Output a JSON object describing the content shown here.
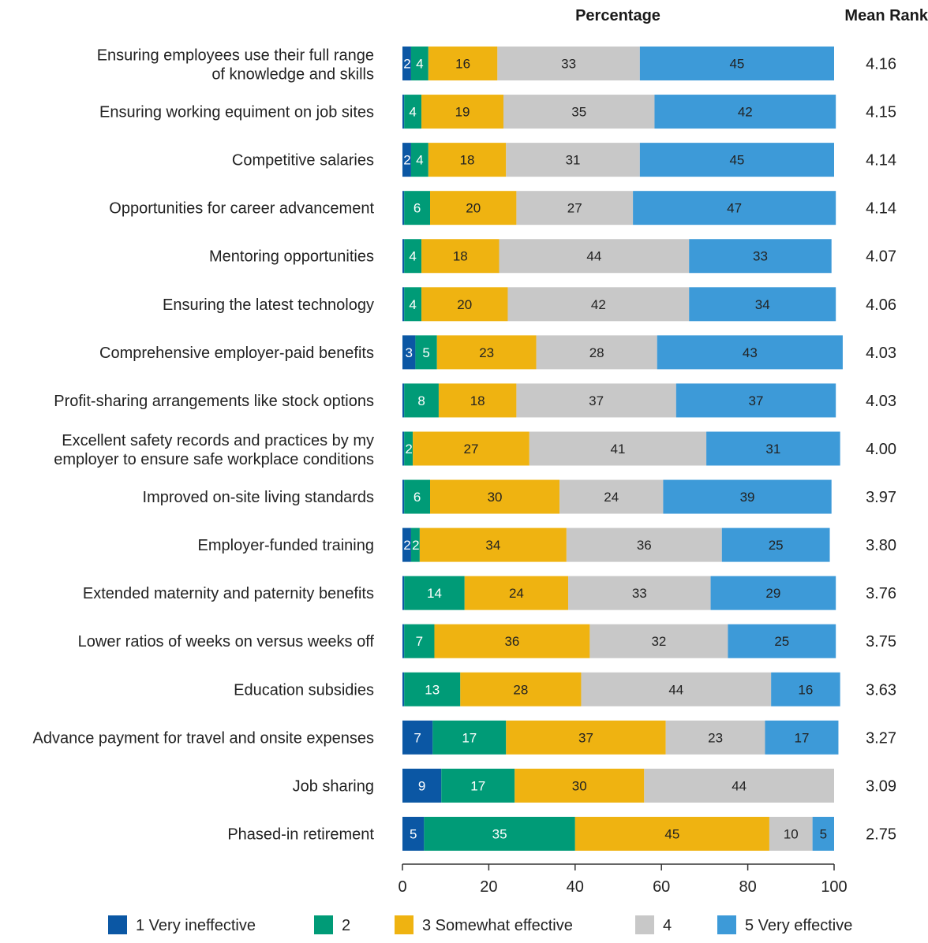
{
  "chart_data": {
    "type": "bar",
    "orientation": "horizontal",
    "stacked": true,
    "title": "",
    "xlabel": "Percentage",
    "value_column_header": "Mean Rank",
    "xlim": [
      0,
      100
    ],
    "xticks": [
      "0",
      "20",
      "40",
      "60",
      "80",
      "100"
    ],
    "grid": false,
    "legend_position": "bottom",
    "categories": [
      "Ensuring employees use their full range of knowledge and skills",
      "Ensuring working equiment on job sites",
      "Competitive salaries",
      "Opportunities for career advancement",
      "Mentoring opportunities",
      "Ensuring the latest technology",
      "Comprehensive employer-paid benefits",
      "Profit-sharing arrangements like stock options",
      "Excellent safety records and practices by my employer to ensure safe workplace conditions",
      "Improved on-site living standards",
      "Employer-funded training",
      "Extended maternity and paternity benefits",
      "Lower ratios of weeks on versus weeks off",
      "Education subsidies",
      "Advance payment for travel and onsite expenses",
      "Job sharing",
      "Phased-in retirement"
    ],
    "category_label_lines": [
      [
        "Ensuring employees use their full range",
        "of knowledge and skills"
      ],
      [
        "Ensuring working equiment on job sites"
      ],
      [
        "Competitive salaries"
      ],
      [
        "Opportunities for career advancement"
      ],
      [
        "Mentoring opportunities"
      ],
      [
        "Ensuring the latest technology"
      ],
      [
        "Comprehensive employer-paid benefits"
      ],
      [
        "Profit-sharing arrangements like stock options"
      ],
      [
        "Excellent safety records and practices by my",
        "employer to ensure safe workplace conditions"
      ],
      [
        "Improved on-site living standards"
      ],
      [
        "Employer-funded training"
      ],
      [
        "Extended maternity and paternity benefits"
      ],
      [
        "Lower ratios of weeks on versus weeks off"
      ],
      [
        "Education subsidies"
      ],
      [
        "Advance payment for travel and onsite expenses"
      ],
      [
        "Job sharing"
      ],
      [
        "Phased-in retirement"
      ]
    ],
    "series": [
      {
        "name": "1 Very ineffective",
        "color": "#0b57a4",
        "values": [
          2,
          0.4,
          2,
          0.4,
          0.4,
          0.4,
          3,
          0.4,
          0.4,
          0.4,
          2,
          0.4,
          0.4,
          0.4,
          7,
          9,
          5
        ],
        "labels": [
          "2",
          "",
          "2",
          "",
          "",
          "",
          "3",
          "",
          "",
          "",
          "2",
          "",
          "",
          "",
          "7",
          "9",
          "5"
        ]
      },
      {
        "name": "2",
        "color": "#009b77",
        "values": [
          4,
          4,
          4,
          6,
          4,
          4,
          5,
          8,
          2,
          6,
          2,
          14,
          7,
          13,
          17,
          17,
          35
        ],
        "labels": [
          "4",
          "4",
          "4",
          "6",
          "4",
          "4",
          "5",
          "8",
          "2",
          "6",
          "2",
          "14",
          "7",
          "13",
          "17",
          "17",
          "35"
        ]
      },
      {
        "name": "3 Somewhat effective",
        "color": "#efb311",
        "values": [
          16,
          19,
          18,
          20,
          18,
          20,
          23,
          18,
          27,
          30,
          34,
          24,
          36,
          28,
          37,
          30,
          45
        ],
        "labels": [
          "16",
          "19",
          "18",
          "20",
          "18",
          "20",
          "23",
          "18",
          "27",
          "30",
          "34",
          "24",
          "36",
          "28",
          "37",
          "30",
          "45"
        ]
      },
      {
        "name": "4",
        "color": "#c8c8c8",
        "values": [
          33,
          35,
          31,
          27,
          44,
          42,
          28,
          37,
          41,
          24,
          36,
          33,
          32,
          44,
          23,
          44,
          10
        ],
        "labels": [
          "33",
          "35",
          "31",
          "27",
          "44",
          "42",
          "28",
          "37",
          "41",
          "24",
          "36",
          "33",
          "32",
          "44",
          "23",
          "44",
          "10"
        ]
      },
      {
        "name": "5 Very effective",
        "color": "#3d9ad8",
        "values": [
          45,
          42,
          45,
          47,
          33,
          34,
          43,
          37,
          31,
          39,
          25,
          29,
          25,
          16,
          17,
          0,
          5
        ],
        "labels": [
          "45",
          "42",
          "45",
          "47",
          "33",
          "34",
          "43",
          "37",
          "31",
          "39",
          "25",
          "29",
          "25",
          "16",
          "17",
          "",
          "5"
        ]
      }
    ],
    "mean_rank": [
      "4.16",
      "4.15",
      "4.14",
      "4.14",
      "4.07",
      "4.06",
      "4.03",
      "4.03",
      "4.00",
      "3.97",
      "3.80",
      "3.76",
      "3.75",
      "3.63",
      "3.27",
      "3.09",
      "2.75"
    ]
  }
}
